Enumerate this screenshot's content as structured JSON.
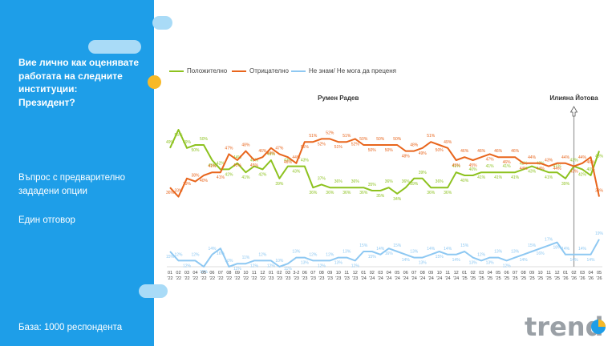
{
  "sidebar": {
    "question": "Вие лично как оценявате работата на следните институции: Президент?",
    "question_lines": [
      "Вие лично как оценявате",
      "работата на следните",
      "институции:",
      "Президент?"
    ],
    "note1": "Въпрос с предварително зададени опции",
    "note2": "Един отговор",
    "base": "База:  1000 респондента"
  },
  "colors": {
    "positive": "#8dc21f",
    "negative": "#e8651c",
    "dontknow": "#8ec8f2",
    "sidebar": "#1e9ee8",
    "accent": "#f7b928"
  },
  "logo": {
    "text": "trend"
  },
  "chart_data": {
    "type": "line",
    "x": [
      "01 '22",
      "02 '22",
      "03 '22",
      "04 '22",
      "05 '22",
      "06 '22",
      "07 '22",
      "08 '22",
      "09 '22",
      "10 '22",
      "11 '22",
      "12 '22",
      "01 '23",
      "02 '23",
      "03 '23",
      "3-2 '23",
      "06 '23",
      "07 '23",
      "08 '23",
      "09 '23",
      "10 '23",
      "11 '23",
      "12 '23",
      "01 '24",
      "02 '24",
      "03 '24",
      "04 '24",
      "05 '24",
      "06 '24",
      "07 '24",
      "08 '24",
      "09 '24",
      "10 '24",
      "11 '24",
      "12 '24",
      "01 '25",
      "02 '25",
      "03 '25",
      "04 '25",
      "05 '25",
      "06 '25",
      "07 '25",
      "08 '25",
      "09 '25",
      "10 '25",
      "11 '25",
      "12 '25",
      "01 '26",
      "02 '26",
      "03 '26",
      "04 '26",
      "05 '26"
    ],
    "x_tick_top": [
      "01",
      "02",
      "03",
      "04",
      "05",
      "06",
      "07",
      "08",
      "09",
      "10",
      "11",
      "12",
      "01",
      "02",
      "03",
      "3-2",
      "06",
      "07",
      "08",
      "09",
      "10",
      "11",
      "12",
      "01",
      "02",
      "03",
      "04",
      "05",
      "06",
      "07",
      "08",
      "09",
      "10",
      "11",
      "12",
      "01",
      "02",
      "03",
      "04",
      "05",
      "06",
      "07",
      "08",
      "09",
      "10",
      "11",
      "12",
      "01",
      "02",
      "03",
      "04",
      "05"
    ],
    "x_tick_bottom": [
      "'22",
      "'22",
      "'22",
      "'22",
      "'22",
      "'22",
      "'22",
      "'22",
      "'22",
      "'22",
      "'22",
      "'22",
      "'23",
      "'23",
      "'23",
      "'23",
      "'23",
      "'23",
      "'23",
      "'23",
      "'23",
      "'23",
      "'23",
      "'24",
      "'24",
      "'24",
      "'24",
      "'24",
      "'24",
      "'24",
      "'24",
      "'24",
      "'24",
      "'24",
      "'24",
      "'25",
      "'25",
      "'25",
      "'25",
      "'25",
      "'25",
      "'25",
      "'25",
      "'25",
      "'25",
      "'25",
      "'25",
      "'26",
      "'26",
      "'26",
      "'26",
      "'26"
    ],
    "series": [
      {
        "name": "Положително",
        "key": "positive",
        "values": [
          49,
          55,
          49,
          50,
          50,
          45,
          42,
          42,
          44,
          41,
          43,
          42,
          45,
          39,
          43,
          43,
          43,
          36,
          37,
          36,
          36,
          36,
          36,
          36,
          35,
          35,
          36,
          34,
          36,
          39,
          39,
          36,
          36,
          36,
          41,
          40,
          40,
          41,
          41,
          41,
          41,
          41,
          42,
          43,
          42,
          41,
          41,
          39,
          43,
          42,
          40,
          48
        ]
      },
      {
        "name": "Отрицателно",
        "key": "negative",
        "values": [
          36,
          33,
          39,
          38,
          40,
          41,
          41,
          47,
          45,
          48,
          45,
          46,
          49,
          47,
          46,
          44,
          51,
          51,
          52,
          52,
          51,
          51,
          52,
          50,
          50,
          50,
          50,
          50,
          48,
          48,
          49,
          51,
          50,
          49,
          45,
          46,
          45,
          46,
          47,
          46,
          46,
          46,
          44,
          44,
          44,
          43,
          44,
          44,
          43,
          44,
          46,
          33
        ]
      },
      {
        "name": "Не знам/ Не мога да преценя",
        "key": "dontknow",
        "values": [
          15,
          12,
          12,
          12,
          10,
          14,
          16,
          10,
          11,
          11,
          12,
          12,
          12,
          10,
          11,
          13,
          13,
          12,
          12,
          12,
          13,
          13,
          12,
          15,
          15,
          14,
          16,
          15,
          14,
          13,
          13,
          14,
          15,
          14,
          14,
          15,
          13,
          12,
          13,
          13,
          12,
          13,
          14,
          15,
          16,
          17,
          18,
          14,
          14,
          14,
          14,
          19
        ]
      }
    ],
    "annotations": [
      {
        "text": "Румен Радев",
        "at": "10 '23"
      },
      {
        "text": "Илияна Йотова",
        "at": "02 '26"
      }
    ],
    "legend_position": "top",
    "grid": false
  }
}
